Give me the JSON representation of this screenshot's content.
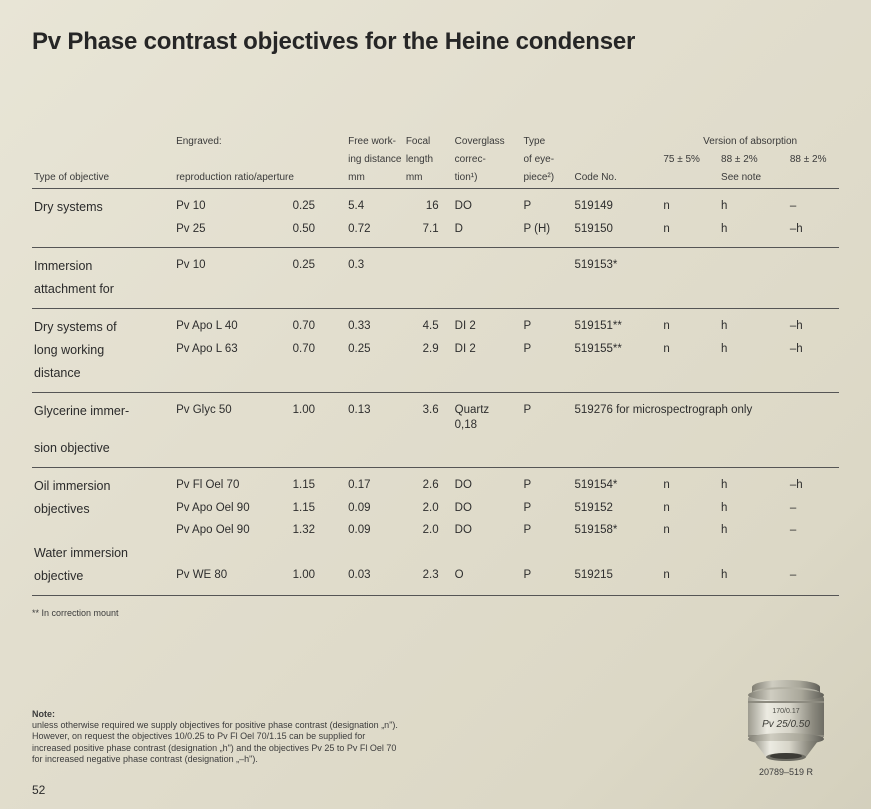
{
  "title": "Pv Phase contrast objectives for the Heine condenser",
  "headers": {
    "type": "Type of objective",
    "engraved_top": "Engraved:",
    "engraved_bot": "reproduction ratio/aperture",
    "fwd_top": "Free work-",
    "fwd_mid": "ing distance",
    "fwd_unit": "mm",
    "focal_top": "Focal",
    "focal_mid": "length",
    "focal_unit": "mm",
    "cover_top": "Coverglass",
    "cover_mid": "correc-",
    "cover_bot": "tion¹)",
    "eye_top": "Type",
    "eye_mid": "of eye-",
    "eye_bot": "piece²)",
    "code": "Code No.",
    "version_title": "Version of absorption",
    "version_note": "See note",
    "v1": "75 ± 5%",
    "v2": "88 ± 2%",
    "v3": "88 ± 2%"
  },
  "groups": [
    {
      "label_lines": [
        "Dry systems"
      ],
      "rows": [
        {
          "engrave": "Pv 10",
          "aperture": "0.25",
          "fwd": "5.4",
          "focal": "16",
          "cover": "DO",
          "eye": "P",
          "code": "519149",
          "v1": "n",
          "v2": "h",
          "v3": "–"
        },
        {
          "engrave": "Pv 25",
          "aperture": "0.50",
          "fwd": "0.72",
          "focal": "7.1",
          "cover": "D",
          "eye": "P (H)",
          "code": "519150",
          "v1": "n",
          "v2": "h",
          "v3": "–h"
        }
      ]
    },
    {
      "label_lines": [
        "Immersion",
        "attachment for"
      ],
      "rows": [
        {
          "engrave": "Pv 10",
          "aperture": "0.25",
          "fwd": "0.3",
          "focal": "",
          "cover": "",
          "eye": "",
          "code": "519153*",
          "v1": "",
          "v2": "",
          "v3": ""
        }
      ]
    },
    {
      "label_lines": [
        "Dry systems of",
        "long working",
        "distance"
      ],
      "rows": [
        {
          "engrave": "Pv Apo L 40",
          "aperture": "0.70",
          "fwd": "0.33",
          "focal": "4.5",
          "cover": "DI 2",
          "eye": "P",
          "code": "519151**",
          "v1": "n",
          "v2": "h",
          "v3": "–h"
        },
        {
          "engrave": "Pv Apo L 63",
          "aperture": "0.70",
          "fwd": "0.25",
          "focal": "2.9",
          "cover": "DI 2",
          "eye": "P",
          "code": "519155**",
          "v1": "n",
          "v2": "h",
          "v3": "–h"
        }
      ]
    },
    {
      "label_lines": [
        "Glycerine immer-",
        "sion objective"
      ],
      "rows": [
        {
          "engrave": "Pv Glyc 50",
          "aperture": "1.00",
          "fwd": "0.13",
          "focal": "3.6",
          "cover": "Quartz 0,18",
          "eye": "P",
          "code": "519276 for microspectrograph only",
          "v1": "",
          "v2": "",
          "v3": "",
          "span_code": true
        }
      ]
    },
    {
      "label_lines": [
        "Oil immersion",
        "objectives",
        "",
        "Water immersion",
        "objective"
      ],
      "rows": [
        {
          "engrave": "Pv Fl Oel 70",
          "aperture": "1.15",
          "fwd": "0.17",
          "focal": "2.6",
          "cover": "DO",
          "eye": "P",
          "code": "519154*",
          "v1": "n",
          "v2": "h",
          "v3": "–h"
        },
        {
          "engrave": "Pv Apo Oel 90",
          "aperture": "1.15",
          "fwd": "0.09",
          "focal": "2.0",
          "cover": "DO",
          "eye": "P",
          "code": "519152",
          "v1": "n",
          "v2": "h",
          "v3": "–"
        },
        {
          "engrave": "Pv Apo Oel 90",
          "aperture": "1.32",
          "fwd": "0.09",
          "focal": "2.0",
          "cover": "DO",
          "eye": "P",
          "code": "519158*",
          "v1": "n",
          "v2": "h",
          "v3": "–"
        },
        {
          "blank": true
        },
        {
          "engrave": "Pv WE 80",
          "aperture": "1.00",
          "fwd": "0.03",
          "focal": "2.3",
          "cover": "O",
          "eye": "P",
          "code": "519215",
          "v1": "n",
          "v2": "h",
          "v3": "–"
        }
      ]
    }
  ],
  "footnote": "** In correction mount",
  "note_title": "Note:",
  "note_body": "unless otherwise required we supply objectives for positive phase contrast (designation „n\"). However, on request the objectives 10/0.25 to Pv Fl Oel 70/1.15 can be supplied for increased positive phase contrast (designation „h\") and the objectives Pv 25 to Pv Fl Oel 70 for increased negative phase contrast (designation „–h\").",
  "page_number": "52",
  "lens_label_top": "170/0.17",
  "lens_label_mid": "Pv 25/0.50",
  "lens_caption": "20789–519 R",
  "colors": {
    "bg": "#e4e0d2",
    "text": "#2d2d2d",
    "line": "#555555",
    "lens_body": "#d8d6cc",
    "lens_band": "#b8b5a8",
    "lens_shadow": "#8c8a7f"
  }
}
